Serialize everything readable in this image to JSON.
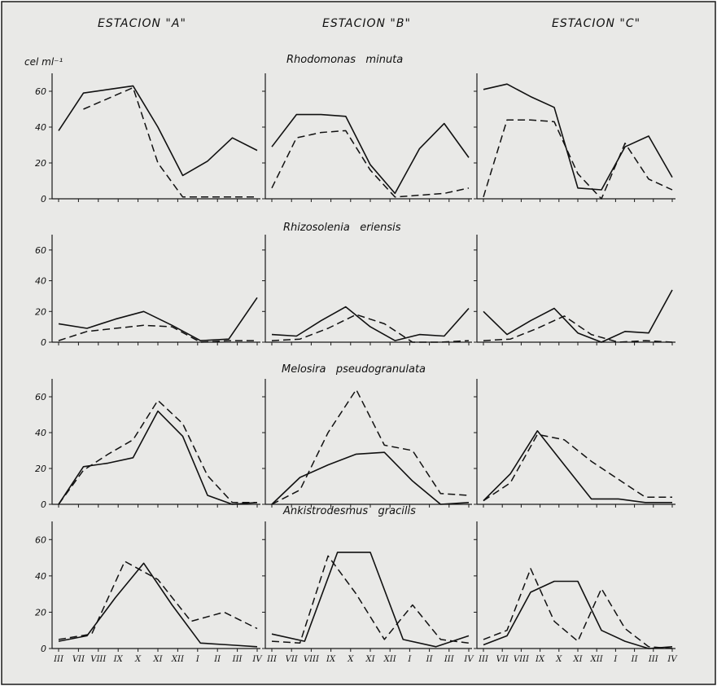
{
  "header": {
    "stations": [
      "ESTACION \"A\"",
      "ESTACION \"B\"",
      "ESTACION \"C\""
    ],
    "unit_label": "cel ml⁻¹"
  },
  "chart_data": {
    "type": "line",
    "ylim": [
      0,
      70
    ],
    "yticks": [
      0,
      20,
      40,
      60
    ],
    "x_categories": [
      "III",
      "VII",
      "VIII",
      "IX",
      "X",
      "XI",
      "XII",
      "I",
      "II",
      "III",
      "IV"
    ],
    "grid": false,
    "legend": "none",
    "rows": [
      {
        "species": "Rhodomonas   minuta",
        "panels": [
          {
            "solid": [
              38,
              59,
              61,
              63,
              40,
              13,
              21,
              34,
              27
            ],
            "dashed": [
              null,
              50,
              56,
              62,
              20,
              1,
              1,
              1,
              1
            ]
          },
          {
            "solid": [
              29,
              47,
              47,
              46,
              19,
              3,
              28,
              42,
              23
            ],
            "dashed": [
              6,
              34,
              37,
              38,
              16,
              1,
              2,
              3,
              6
            ]
          },
          {
            "solid": [
              61,
              64,
              57,
              51,
              6,
              5,
              29,
              35,
              12
            ],
            "dashed": [
              1,
              44,
              44,
              43,
              14,
              0,
              31,
              11,
              5
            ]
          }
        ]
      },
      {
        "species": "Rhizosolenia   eriensis",
        "panels": [
          {
            "solid": [
              12,
              9,
              15,
              20,
              11,
              1,
              2,
              29
            ],
            "dashed": [
              1,
              7,
              9,
              11,
              10,
              0,
              1,
              1
            ]
          },
          {
            "solid": [
              5,
              4,
              14,
              23,
              10,
              1,
              5,
              4,
              22
            ],
            "dashed": [
              1,
              2,
              9,
              18,
              12,
              0,
              0,
              1
            ]
          },
          {
            "solid": [
              20,
              5,
              14,
              22,
              6,
              0,
              7,
              6,
              34
            ],
            "dashed": [
              1,
              2,
              9,
              17,
              5,
              0,
              1,
              0
            ]
          }
        ]
      },
      {
        "species": "Melosira   pseudogranulata",
        "panels": [
          {
            "solid": [
              0,
              21,
              23,
              26,
              52,
              38,
              5,
              0,
              1
            ],
            "dashed": [
              0,
              19,
              28,
              36,
              58,
              45,
              16,
              1,
              1
            ]
          },
          {
            "solid": [
              0,
              15,
              22,
              28,
              29,
              13,
              0,
              1
            ],
            "dashed": [
              0,
              8,
              40,
              64,
              33,
              30,
              6,
              5
            ]
          },
          {
            "solid": [
              2,
              17,
              41,
              22,
              3,
              3,
              1,
              1
            ],
            "dashed": [
              2,
              12,
              39,
              36,
              24,
              14,
              4,
              4
            ]
          }
        ]
      },
      {
        "species": "Ankistrodesmus   gracilis",
        "panels": [
          {
            "solid": [
              4,
              7,
              28,
              47,
              24,
              3,
              2,
              1
            ],
            "dashed": [
              5,
              8,
              48,
              38,
              15,
              20,
              11
            ]
          },
          {
            "solid": [
              8,
              4,
              53,
              53,
              5,
              1,
              7
            ],
            "dashed": [
              4,
              3,
              51,
              30,
              5,
              24,
              5,
              3
            ]
          },
          {
            "solid": [
              2,
              7,
              31,
              37,
              37,
              10,
              4,
              0,
              1
            ],
            "dashed": [
              5,
              10,
              44,
              15,
              4,
              33,
              11,
              1,
              0
            ]
          }
        ]
      }
    ]
  }
}
